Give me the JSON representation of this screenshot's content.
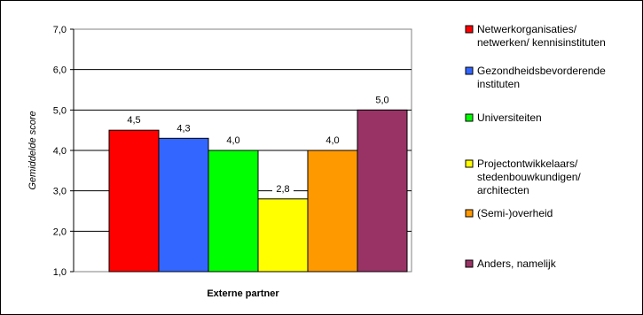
{
  "chart_data": {
    "type": "bar",
    "categories": [
      "Netwerkorganisaties/ netwerken/ kennisinstituten",
      "Gezondheidsbevorderende instituten",
      "Universiteiten",
      "Projectontwikkelaars/ stedenbouwkundigen/ architecten",
      "(Semi-)overheid",
      "Anders, namelijk"
    ],
    "values": [
      4.5,
      4.3,
      4.0,
      2.8,
      4.0,
      5.0
    ],
    "value_labels": [
      "4,5",
      "4,3",
      "4,0",
      "2,8",
      "4,0",
      "5,0"
    ],
    "colors": [
      "#ff0000",
      "#3366ff",
      "#00ff00",
      "#ffff00",
      "#ff9900",
      "#993366"
    ],
    "legend_lines": [
      [
        "Netwerkorganisaties/",
        "netwerken/ kennisinstituten"
      ],
      [
        "Gezondheidsbevorderende",
        "instituten"
      ],
      [
        "Universiteiten"
      ],
      [
        "Projectontwikkelaars/",
        "stedenbouwkundigen/",
        "architecten"
      ],
      [
        "(Semi-)overheid"
      ],
      [
        "Anders, namelijk"
      ]
    ],
    "xlabel": "Externe partner",
    "ylabel": "Gemiddelde score",
    "ylim": [
      1,
      7
    ],
    "yticks": [
      "1,0",
      "2,0",
      "3,0",
      "4,0",
      "5,0",
      "6,0",
      "7,0"
    ],
    "grid": true,
    "legend_position": "right"
  }
}
